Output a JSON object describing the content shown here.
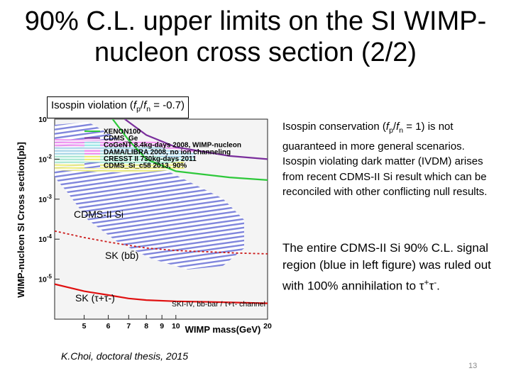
{
  "slide": {
    "title_line1": "90% C.L. upper limits on the SI WIMP-",
    "title_line2": "nucleon cross section (2/2)",
    "box_label": {
      "pre": "Isospin violation (",
      "fp": "f",
      "p": "p",
      "slash": "/",
      "fn": "f",
      "n": "n",
      "post": " = -0.7)"
    },
    "para1": {
      "t1": "Isospin conservation (",
      "fp": "f",
      "p": "p",
      "slash": "/",
      "fn": "f",
      "n": "n",
      "t2": "  =  1) is not guaranteed in more general scenarios. Isospin violating dark matter (IVDM) arises from recent CDMS-II Si result which can be reconciled with other conflicting null results."
    },
    "para2": {
      "t1": "The entire CDMS-II Si 90% C.L. signal region (blue in left figure) was ruled out with 100% annihilation to ",
      "tau1": "τ",
      "plus": "+",
      "tau2": "τ",
      "minus": "-",
      "t2": "."
    },
    "credit": "K.Choi, doctoral thesis, 2015",
    "slide_number": "13",
    "annotations": {
      "cdms_si": "CDMS-II Si",
      "sk_bb": "SK (bb̄)",
      "sk_tau": "SK (τ+τ-)"
    }
  },
  "chart_data": {
    "type": "line",
    "xlabel": "WIMP mass(GeV)",
    "ylabel": "WIMP-nucleon SI Cross section[pb]",
    "xscale": "log",
    "yscale": "log",
    "xlim": [
      4,
      20
    ],
    "ylim": [
      1e-06,
      0.1
    ],
    "x_ticks": [
      "5",
      "6",
      "7",
      "8",
      "9",
      "10",
      "20"
    ],
    "y_ticks": [
      "10-1",
      "10-2",
      "10-3",
      "10-4",
      "10-5"
    ],
    "legend": [
      {
        "name": "XENON100",
        "color": "#2ec83a"
      },
      {
        "name": "CDMS_Ge",
        "color": "#7a2e9c"
      },
      {
        "name": "CoGeNT 8.4kg-days 2008, WIMP-nucleon",
        "color": "#b9f0f0"
      },
      {
        "name": "DAMA/LIBRA 2008, no ion channeling",
        "color": "#f080f0"
      },
      {
        "name": "CRESST II 730kg-days 2011",
        "color": "#f0f070"
      },
      {
        "name": "CDMS_Si_c58 2013, 90%",
        "color": "#8a8ae0"
      }
    ],
    "extra_labels": [
      "SKI-IV, bb-bar / τ+τ- channel"
    ],
    "series": [
      {
        "name": "XENON100",
        "x": [
          6.2,
          7,
          8,
          10,
          15,
          20
        ],
        "y": [
          0.1,
          0.03,
          0.01,
          0.005,
          0.0035,
          0.003
        ]
      },
      {
        "name": "CDMS_Ge",
        "x": [
          6.8,
          8,
          10,
          15,
          20
        ],
        "y": [
          0.1,
          0.04,
          0.02,
          0.012,
          0.01
        ]
      },
      {
        "x": [
          4,
          5,
          6,
          7,
          8,
          10,
          13,
          16,
          20
        ],
        "y": [
          0.00016,
          0.00011,
          8.5e-05,
          7e-05,
          6e-05,
          5.2e-05,
          4.8e-05,
          4.5e-05,
          4.3e-05
        ]
      },
      {
        "x": [
          4,
          5,
          6,
          7,
          8,
          10,
          13,
          16,
          20
        ],
        "y": [
          7.5e-06,
          5e-06,
          4e-06,
          3.3e-06,
          3e-06,
          2.8e-06,
          2.7e-06,
          2.6e-06,
          2.5e-06
        ]
      }
    ]
  }
}
